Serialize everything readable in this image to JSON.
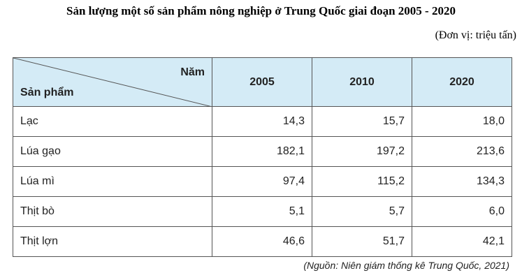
{
  "title": "Sản lượng một số sản phẩm nông nghiệp ở Trung Quốc giai đoạn 2005 - 2020",
  "unit": "(Đơn vị: triệu tấn)",
  "table": {
    "header": {
      "corner_top": "Năm",
      "corner_bottom": "Sản phẩm",
      "years": [
        "2005",
        "2010",
        "2020"
      ]
    },
    "rows": [
      [
        "Lạc",
        "14,3",
        "15,7",
        "18,0"
      ],
      [
        "Lúa gạo",
        "182,1",
        "197,2",
        "213,6"
      ],
      [
        "Lúa mì",
        "97,4",
        "115,2",
        "134,3"
      ],
      [
        "Thịt bò",
        "5,1",
        "5,7",
        "6,0"
      ],
      [
        "Thịt lợn",
        "46,6",
        "51,7",
        "42,1"
      ]
    ]
  },
  "source": "(Nguồn: Niên giám thống kê Trung Quốc, 2021)"
}
